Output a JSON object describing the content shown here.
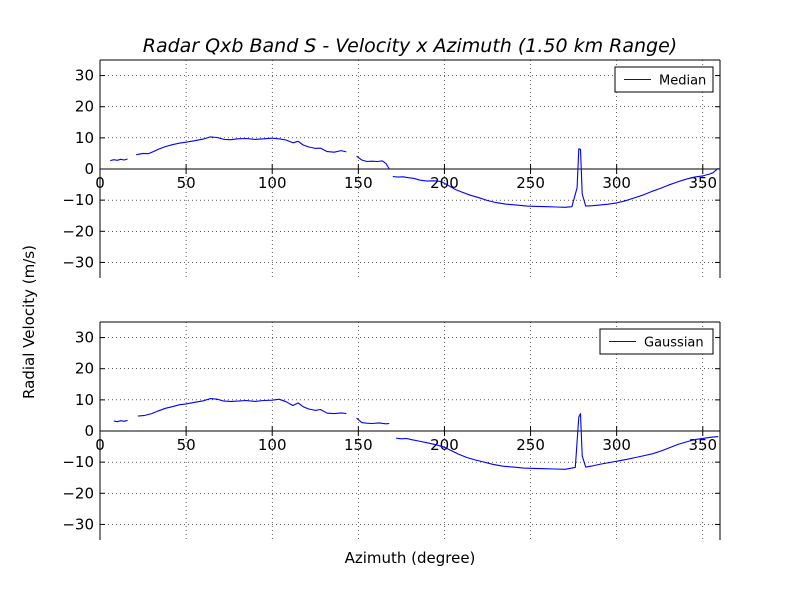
{
  "figure": {
    "title": "Radar Qxb Band S - Velocity x Azimuth (1.50 km Range)",
    "shared_ylabel": "Radial Velocity (m/s)",
    "shared_xlabel": "Azimuth (degree)"
  },
  "chart_data": [
    {
      "type": "line",
      "grid": true,
      "legend_position": "top-right",
      "xlim": [
        0,
        360
      ],
      "ylim": [
        -35,
        35
      ],
      "x_ticks": [
        0,
        50,
        100,
        150,
        200,
        250,
        300,
        350
      ],
      "y_ticks": [
        -30,
        -20,
        -10,
        0,
        10,
        20,
        30
      ],
      "x_tick_labels": [
        "0",
        "50",
        "100",
        "150",
        "200",
        "250",
        "300",
        "350"
      ],
      "y_tick_labels": [
        "−30",
        "−20",
        "−10",
        "0",
        "10",
        "20",
        "30"
      ],
      "series": [
        {
          "name": "Median",
          "color": "#0000ff",
          "segments": [
            [
              [
                6,
                2.7
              ],
              [
                8,
                3
              ],
              [
                10,
                2.8
              ],
              [
                12,
                3.1
              ],
              [
                14,
                2.9
              ],
              [
                16,
                3.2
              ]
            ],
            [
              [
                21,
                4.6
              ],
              [
                25,
                5
              ],
              [
                28,
                4.9
              ],
              [
                31,
                5.6
              ],
              [
                34,
                6.4
              ],
              [
                38,
                7.2
              ],
              [
                42,
                7.8
              ],
              [
                46,
                8.3
              ],
              [
                50,
                8.6
              ],
              [
                55,
                9.1
              ],
              [
                60,
                9.6
              ],
              [
                64,
                10.3
              ],
              [
                68,
                10.1
              ],
              [
                72,
                9.5
              ],
              [
                76,
                9.4
              ],
              [
                80,
                9.7
              ],
              [
                85,
                9.8
              ],
              [
                90,
                9.5
              ],
              [
                95,
                9.7
              ],
              [
                100,
                9.9
              ],
              [
                104,
                9.7
              ],
              [
                108,
                9.3
              ],
              [
                112,
                8.4
              ],
              [
                115,
                8.9
              ],
              [
                118,
                7.7
              ],
              [
                121,
                7.1
              ],
              [
                125,
                6.6
              ],
              [
                128,
                6.7
              ],
              [
                132,
                5.6
              ],
              [
                136,
                5.4
              ],
              [
                140,
                5.9
              ],
              [
                143,
                5.5
              ]
            ],
            [
              [
                149,
                4.1
              ],
              [
                152,
                2.9
              ],
              [
                155,
                2.4
              ],
              [
                158,
                2.5
              ],
              [
                161,
                2.4
              ],
              [
                164,
                2.6
              ],
              [
                166,
                1.8
              ],
              [
                168,
                0
              ]
            ],
            [
              [
                170,
                -2.4
              ],
              [
                173,
                -2.6
              ],
              [
                176,
                -2.5
              ],
              [
                179,
                -2.8
              ],
              [
                182,
                -3
              ],
              [
                186,
                -3.6
              ],
              [
                190,
                -3.9
              ],
              [
                194,
                -3.8
              ],
              [
                198,
                -4
              ],
              [
                202,
                -5.2
              ],
              [
                206,
                -6.5
              ],
              [
                210,
                -7.4
              ],
              [
                215,
                -8.4
              ],
              [
                220,
                -9.2
              ],
              [
                225,
                -10.1
              ],
              [
                230,
                -10.8
              ],
              [
                236,
                -11.3
              ],
              [
                242,
                -11.6
              ],
              [
                248,
                -11.9
              ],
              [
                254,
                -12
              ],
              [
                260,
                -12.1
              ],
              [
                265,
                -12.2
              ],
              [
                270,
                -12.3
              ],
              [
                274,
                -12.1
              ],
              [
                277,
                -6
              ],
              [
                278,
                6.5
              ],
              [
                279,
                6.3
              ],
              [
                280,
                -8
              ],
              [
                282,
                -11.9
              ],
              [
                286,
                -11.8
              ],
              [
                290,
                -11.6
              ],
              [
                295,
                -11.3
              ],
              [
                300,
                -10.9
              ],
              [
                305,
                -10.2
              ],
              [
                310,
                -9.3
              ],
              [
                315,
                -8.4
              ],
              [
                320,
                -7.3
              ],
              [
                325,
                -6.3
              ],
              [
                330,
                -5.2
              ],
              [
                335,
                -4.2
              ],
              [
                340,
                -3.3
              ],
              [
                345,
                -2.6
              ],
              [
                350,
                -2.2
              ],
              [
                354,
                -1.6
              ],
              [
                356,
                -1.2
              ],
              [
                359,
                0.3
              ]
            ]
          ]
        }
      ]
    },
    {
      "type": "line",
      "grid": true,
      "legend_position": "top-right",
      "xlim": [
        0,
        360
      ],
      "ylim": [
        -35,
        35
      ],
      "x_ticks": [
        0,
        50,
        100,
        150,
        200,
        250,
        300,
        350
      ],
      "y_ticks": [
        -30,
        -20,
        -10,
        0,
        10,
        20,
        30
      ],
      "x_tick_labels": [
        "0",
        "50",
        "100",
        "150",
        "200",
        "250",
        "300",
        "350"
      ],
      "y_tick_labels": [
        "−30",
        "−20",
        "−10",
        "0",
        "10",
        "20",
        "30"
      ],
      "series": [
        {
          "name": "Gaussian",
          "color": "#0000ff",
          "segments": [
            [
              [
                8,
                3.2
              ],
              [
                10,
                3
              ],
              [
                12,
                3.3
              ],
              [
                14,
                3.1
              ],
              [
                16,
                3.4
              ]
            ],
            [
              [
                22,
                4.8
              ],
              [
                26,
                5
              ],
              [
                30,
                5.6
              ],
              [
                34,
                6.5
              ],
              [
                38,
                7.3
              ],
              [
                42,
                7.8
              ],
              [
                46,
                8.4
              ],
              [
                50,
                8.7
              ],
              [
                55,
                9.2
              ],
              [
                60,
                9.7
              ],
              [
                64,
                10.4
              ],
              [
                68,
                10.2
              ],
              [
                72,
                9.6
              ],
              [
                76,
                9.5
              ],
              [
                80,
                9.6
              ],
              [
                85,
                9.8
              ],
              [
                90,
                9.5
              ],
              [
                95,
                9.8
              ],
              [
                100,
                9.9
              ],
              [
                104,
                10.2
              ],
              [
                108,
                9.4
              ],
              [
                112,
                8.2
              ],
              [
                115,
                9
              ],
              [
                118,
                7.8
              ],
              [
                121,
                7.1
              ],
              [
                125,
                6.6
              ],
              [
                128,
                6.9
              ],
              [
                132,
                5.7
              ],
              [
                136,
                5.6
              ],
              [
                140,
                5.8
              ],
              [
                143,
                5.6
              ]
            ],
            [
              [
                149,
                4.1
              ],
              [
                152,
                2.7
              ],
              [
                155,
                2.5
              ],
              [
                158,
                2.4
              ],
              [
                162,
                2.6
              ],
              [
                166,
                2.3
              ],
              [
                168,
                2.4
              ]
            ],
            [
              [
                172,
                -2.3
              ],
              [
                175,
                -2.5
              ],
              [
                178,
                -2.4
              ],
              [
                181,
                -2.8
              ],
              [
                185,
                -3.2
              ],
              [
                190,
                -3.8
              ],
              [
                195,
                -4.4
              ],
              [
                200,
                -5.2
              ],
              [
                204,
                -6.3
              ],
              [
                208,
                -7.4
              ],
              [
                213,
                -8.5
              ],
              [
                218,
                -9.3
              ],
              [
                223,
                -10
              ],
              [
                228,
                -10.7
              ],
              [
                234,
                -11.3
              ],
              [
                240,
                -11.6
              ],
              [
                246,
                -11.9
              ],
              [
                252,
                -12
              ],
              [
                258,
                -12.1
              ],
              [
                264,
                -12.2
              ],
              [
                270,
                -12.3
              ],
              [
                276,
                -11.7
              ],
              [
                278,
                4.5
              ],
              [
                279,
                5.6
              ],
              [
                280,
                -8
              ],
              [
                282,
                -11.6
              ],
              [
                286,
                -11.2
              ],
              [
                291,
                -10.6
              ],
              [
                296,
                -10.1
              ],
              [
                301,
                -9.6
              ],
              [
                306,
                -9.1
              ],
              [
                311,
                -8.5
              ],
              [
                316,
                -7.9
              ],
              [
                321,
                -7.3
              ],
              [
                326,
                -6.4
              ],
              [
                331,
                -5.3
              ],
              [
                336,
                -4.2
              ],
              [
                341,
                -3.4
              ],
              [
                346,
                -2.7
              ],
              [
                351,
                -2.3
              ],
              [
                355,
                -2
              ],
              [
                359,
                -1.8
              ]
            ]
          ]
        }
      ]
    }
  ]
}
